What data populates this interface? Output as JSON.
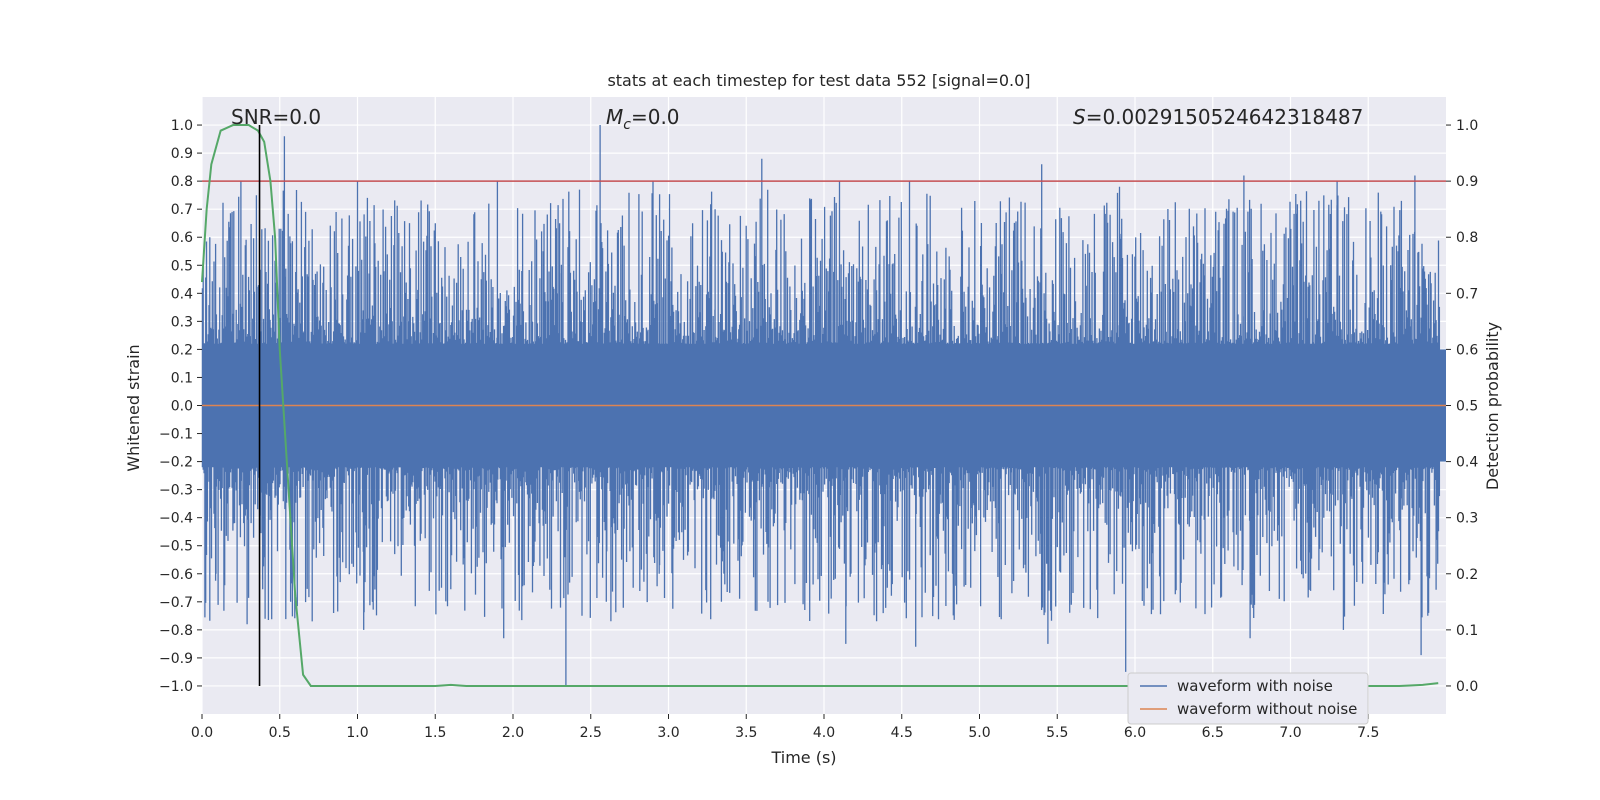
{
  "chart_data": {
    "type": "line",
    "title": "stats at each timestep for test data 552 [signal=0.0]",
    "xlabel": "Time (s)",
    "ylabel_left": "Whitened strain",
    "ylabel_right": "Detection probability",
    "xlim": [
      0.0,
      8.0
    ],
    "ylim_left": [
      -1.1,
      1.1
    ],
    "ylim_right": [
      -0.05,
      1.05
    ],
    "x_ticks": [
      "0.0",
      "0.5",
      "1.0",
      "1.5",
      "2.0",
      "2.5",
      "3.0",
      "3.5",
      "4.0",
      "4.5",
      "5.0",
      "5.5",
      "6.0",
      "6.5",
      "7.0",
      "7.5"
    ],
    "y_left_ticks": [
      "1.0",
      "0.9",
      "0.8",
      "0.7",
      "0.6",
      "0.5",
      "0.4",
      "0.3",
      "0.2",
      "0.1",
      "0.0",
      "−0.1",
      "−0.2",
      "−0.3",
      "−0.4",
      "−0.5",
      "−0.6",
      "−0.7",
      "−0.8",
      "−0.9",
      "−1.0"
    ],
    "y_right_ticks": [
      "1.0",
      "0.9",
      "0.8",
      "0.7",
      "0.6",
      "0.5",
      "0.4",
      "0.3",
      "0.2",
      "0.1",
      "0.0"
    ],
    "grid": true,
    "legend_position": "lower-right",
    "annotations": {
      "snr": "SNR=0.0",
      "mc_symbol": "M",
      "mc_sub": "c",
      "mc_value": "=0.0",
      "s_symbol": "S",
      "s_value": "=0.0029150524642318487"
    },
    "series": [
      {
        "name": "waveform with noise",
        "color": "#4c72b0",
        "axis": "left",
        "style": "noise",
        "peak_envelope": {
          "x": [
            0.05,
            0.25,
            0.35,
            0.53,
            1.0,
            1.5,
            1.9,
            2.3,
            2.56,
            2.9,
            3.3,
            3.6,
            4.1,
            4.55,
            5.4,
            5.9,
            6.7,
            7.3,
            7.8
          ],
          "y_max": [
            0.6,
            0.8,
            0.75,
            0.96,
            0.8,
            0.65,
            0.8,
            0.65,
            1.0,
            0.8,
            0.7,
            0.88,
            0.8,
            0.8,
            0.86,
            0.78,
            0.82,
            0.8,
            0.82
          ],
          "y_min": [
            -0.6,
            -0.78,
            -0.62,
            -0.7,
            -0.8,
            -0.65,
            -0.83,
            -1.0,
            -0.7,
            -0.6,
            -0.7,
            -0.7,
            -0.85,
            -0.86,
            -0.85,
            -0.95,
            -0.83,
            -0.8,
            -0.89
          ]
        }
      },
      {
        "name": "waveform without noise",
        "color": "#dd8452",
        "axis": "left",
        "x": [
          0.0,
          8.0
        ],
        "y": [
          0.0,
          0.0
        ]
      },
      {
        "name": "",
        "color": "#55a868",
        "axis": "right",
        "x": [
          0.0,
          0.03,
          0.06,
          0.12,
          0.2,
          0.3,
          0.36,
          0.4,
          0.44,
          0.47,
          0.5,
          0.55,
          0.6,
          0.65,
          0.7,
          0.8,
          1.0,
          1.5,
          1.6,
          1.7,
          2.0,
          3.0,
          4.0,
          5.0,
          6.0,
          7.0,
          7.7,
          7.85,
          7.95
        ],
        "y": [
          0.72,
          0.85,
          0.93,
          0.99,
          1.0,
          1.0,
          0.99,
          0.97,
          0.9,
          0.8,
          0.6,
          0.38,
          0.16,
          0.02,
          0.0,
          0.0,
          0.0,
          0.0,
          0.002,
          0.0,
          0.0,
          0.0,
          0.0,
          0.0,
          0.0,
          0.0,
          0.0,
          0.002,
          0.005
        ]
      }
    ],
    "threshold": {
      "axis": "right",
      "value": 0.9,
      "color": "#c44e52"
    },
    "marker_line": {
      "x": 0.37,
      "y_from": -1.0,
      "y_to": 1.0,
      "color": "#000000"
    }
  }
}
